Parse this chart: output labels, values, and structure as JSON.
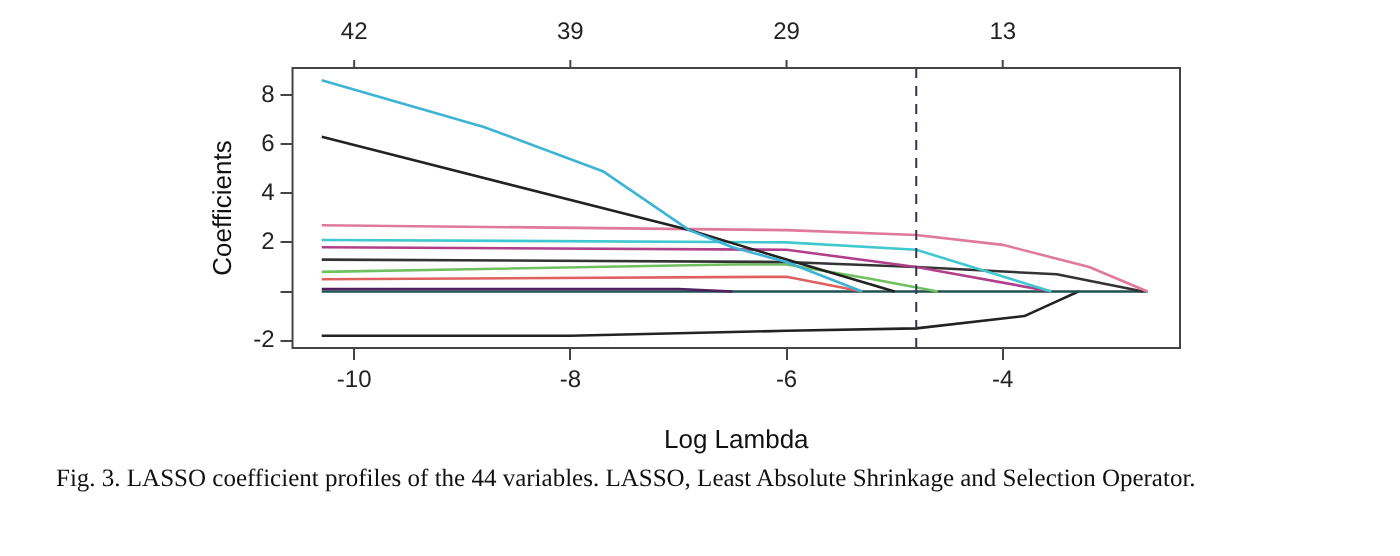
{
  "chart_data": {
    "type": "line",
    "xlabel": "Log Lambda",
    "ylabel": "Coefficients",
    "annotations": [
      "Fig. 3. LASSO coefficient profiles of the 44 variables. LASSO, Least Absolute Shrinkage and Selection Operator.",
      "42",
      "39",
      "29",
      "13"
    ],
    "xlim": [
      -10.57,
      -2.36
    ],
    "xticks": [
      -10,
      -8,
      -6,
      -4
    ],
    "ylim": [
      -2.3,
      9.1
    ],
    "yticks": [
      -2,
      {
        "value": 0,
        "label": null
      },
      2,
      4,
      6,
      8
    ],
    "grid": false,
    "legend": false,
    "marker": "none",
    "line_style": "solid",
    "ref_lines": [
      {
        "axis": "x",
        "value": -4.8,
        "label": null,
        "color": "#333355",
        "line_style": "dashed"
      }
    ],
    "series": [
      {
        "color": "#3cb4d6",
        "x": [
          -10.3,
          -8.8,
          -7.7,
          -6.9,
          -6.5,
          -6.0,
          -5.3
        ],
        "values": [
          8.6,
          6.7,
          4.9,
          2.5,
          1.8,
          1.2,
          0
        ]
      },
      {
        "color": "#222222",
        "x": [
          -10.3,
          -6.9,
          -6.0,
          -5.0
        ],
        "values": [
          6.3,
          2.5,
          1.3,
          0
        ]
      },
      {
        "color": "#e07a9a",
        "x": [
          -10.3,
          -6.0,
          -4.8,
          -4.0,
          -3.2,
          -2.66
        ],
        "values": [
          2.7,
          2.5,
          2.3,
          1.9,
          1.0,
          0
        ]
      },
      {
        "color": "#40c8d0",
        "x": [
          -10.3,
          -6.0,
          -4.8,
          -3.55
        ],
        "values": [
          2.1,
          2.0,
          1.7,
          0
        ]
      },
      {
        "color": "#b0408a",
        "x": [
          -10.3,
          -6.0,
          -4.8,
          -3.55
        ],
        "values": [
          1.8,
          1.7,
          1.0,
          0
        ]
      },
      {
        "color": "#333333",
        "x": [
          -10.3,
          -6.0,
          -4.8,
          -3.5,
          -2.7
        ],
        "values": [
          1.3,
          1.2,
          1.0,
          0.7,
          0
        ]
      },
      {
        "color": "#70c060",
        "x": [
          -10.3,
          -6.5,
          -6.0,
          -5.2,
          -4.6
        ],
        "values": [
          0.8,
          1.1,
          1.1,
          0.5,
          0
        ]
      },
      {
        "color": "#e06060",
        "x": [
          -10.3,
          -6.0,
          -5.3
        ],
        "values": [
          0.5,
          0.6,
          0
        ]
      },
      {
        "color": "#502060",
        "x": [
          -10.3,
          -7.0,
          -6.5
        ],
        "values": [
          0.1,
          0.1,
          0
        ]
      },
      {
        "color": "#205050",
        "x": [
          -10.3,
          -2.66
        ],
        "values": [
          0,
          0
        ]
      },
      {
        "color": "#222222",
        "x": [
          -10.3,
          -8.0,
          -6.0,
          -4.8,
          -3.8,
          -3.5,
          -3.3
        ],
        "values": [
          -1.8,
          -1.8,
          -1.6,
          -1.5,
          -1.0,
          -0.4,
          0
        ]
      }
    ]
  }
}
